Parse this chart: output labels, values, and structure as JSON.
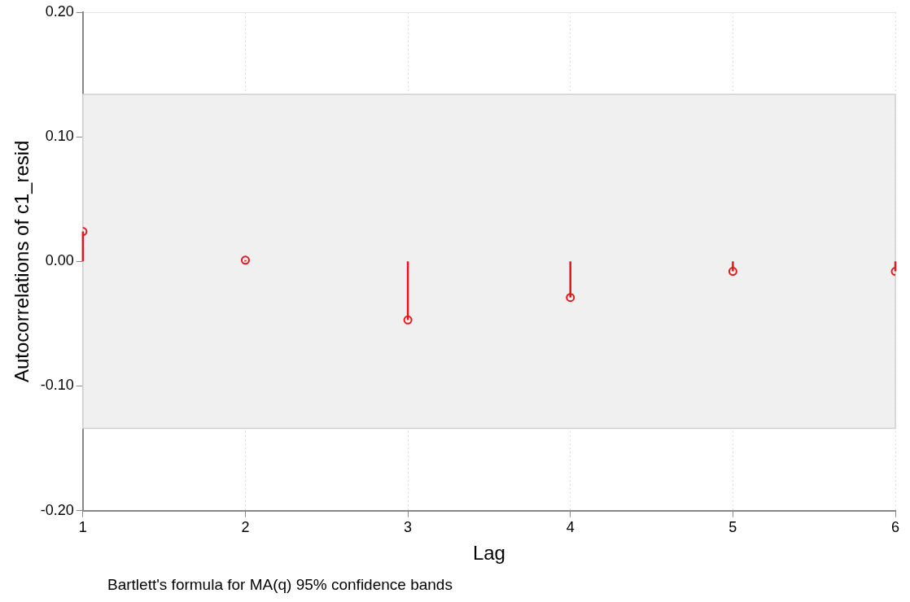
{
  "chart_data": {
    "type": "lollipop",
    "xlabel": "Lag",
    "ylabel": "Autocorrelations of c1_resid",
    "x": [
      1,
      2,
      3,
      4,
      5,
      6
    ],
    "series": [
      {
        "color": "#e8161e",
        "values": [
          0.024,
          0.001,
          -0.047,
          -0.029,
          -0.008,
          -0.008
        ]
      }
    ],
    "xlim": [
      1,
      6
    ],
    "xticks": [
      1,
      2,
      3,
      4,
      5,
      6
    ],
    "ylim": [
      -0.2,
      0.2
    ],
    "yticks": [
      {
        "value": -0.2,
        "label": "-0.20"
      },
      {
        "value": -0.1,
        "label": "-0.10"
      },
      {
        "value": 0,
        "label": "0.00"
      },
      {
        "value": 0.1,
        "label": "0.10"
      },
      {
        "value": 0.2,
        "label": "0.20"
      }
    ],
    "bands": [
      {
        "axis": "y",
        "from": -0.134,
        "to": 0.134,
        "color": "#f0f0f0"
      }
    ],
    "grid": true,
    "line_style": "dotted",
    "marker": "circle",
    "legend": false,
    "annotations": [
      "Bartlett's formula for MA(q) 95% confidence bands"
    ]
  }
}
